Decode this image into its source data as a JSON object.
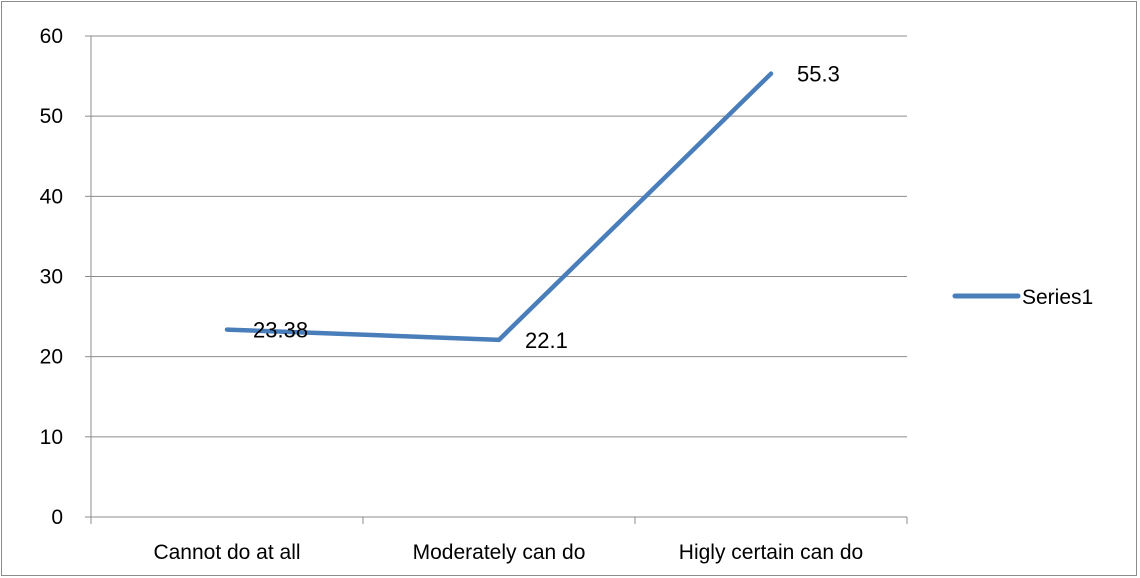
{
  "chart_data": {
    "type": "line",
    "categories": [
      "Cannot do at all",
      "Moderately can do",
      "Higly certain can do"
    ],
    "series": [
      {
        "name": "Series1",
        "values": [
          23.38,
          22.1,
          55.3
        ],
        "data_labels": [
          "23.38",
          "22.1",
          "55.3"
        ],
        "color": "#4a7ebb"
      }
    ],
    "y_ticks": [
      "0",
      "10",
      "20",
      "30",
      "40",
      "50",
      "60"
    ],
    "ylim": [
      0,
      60
    ],
    "grid": true,
    "legend_position": "right",
    "colors": {
      "gridline": "#8c8c8c",
      "axis": "#8c8c8c",
      "series": "#4a7ebb"
    }
  }
}
